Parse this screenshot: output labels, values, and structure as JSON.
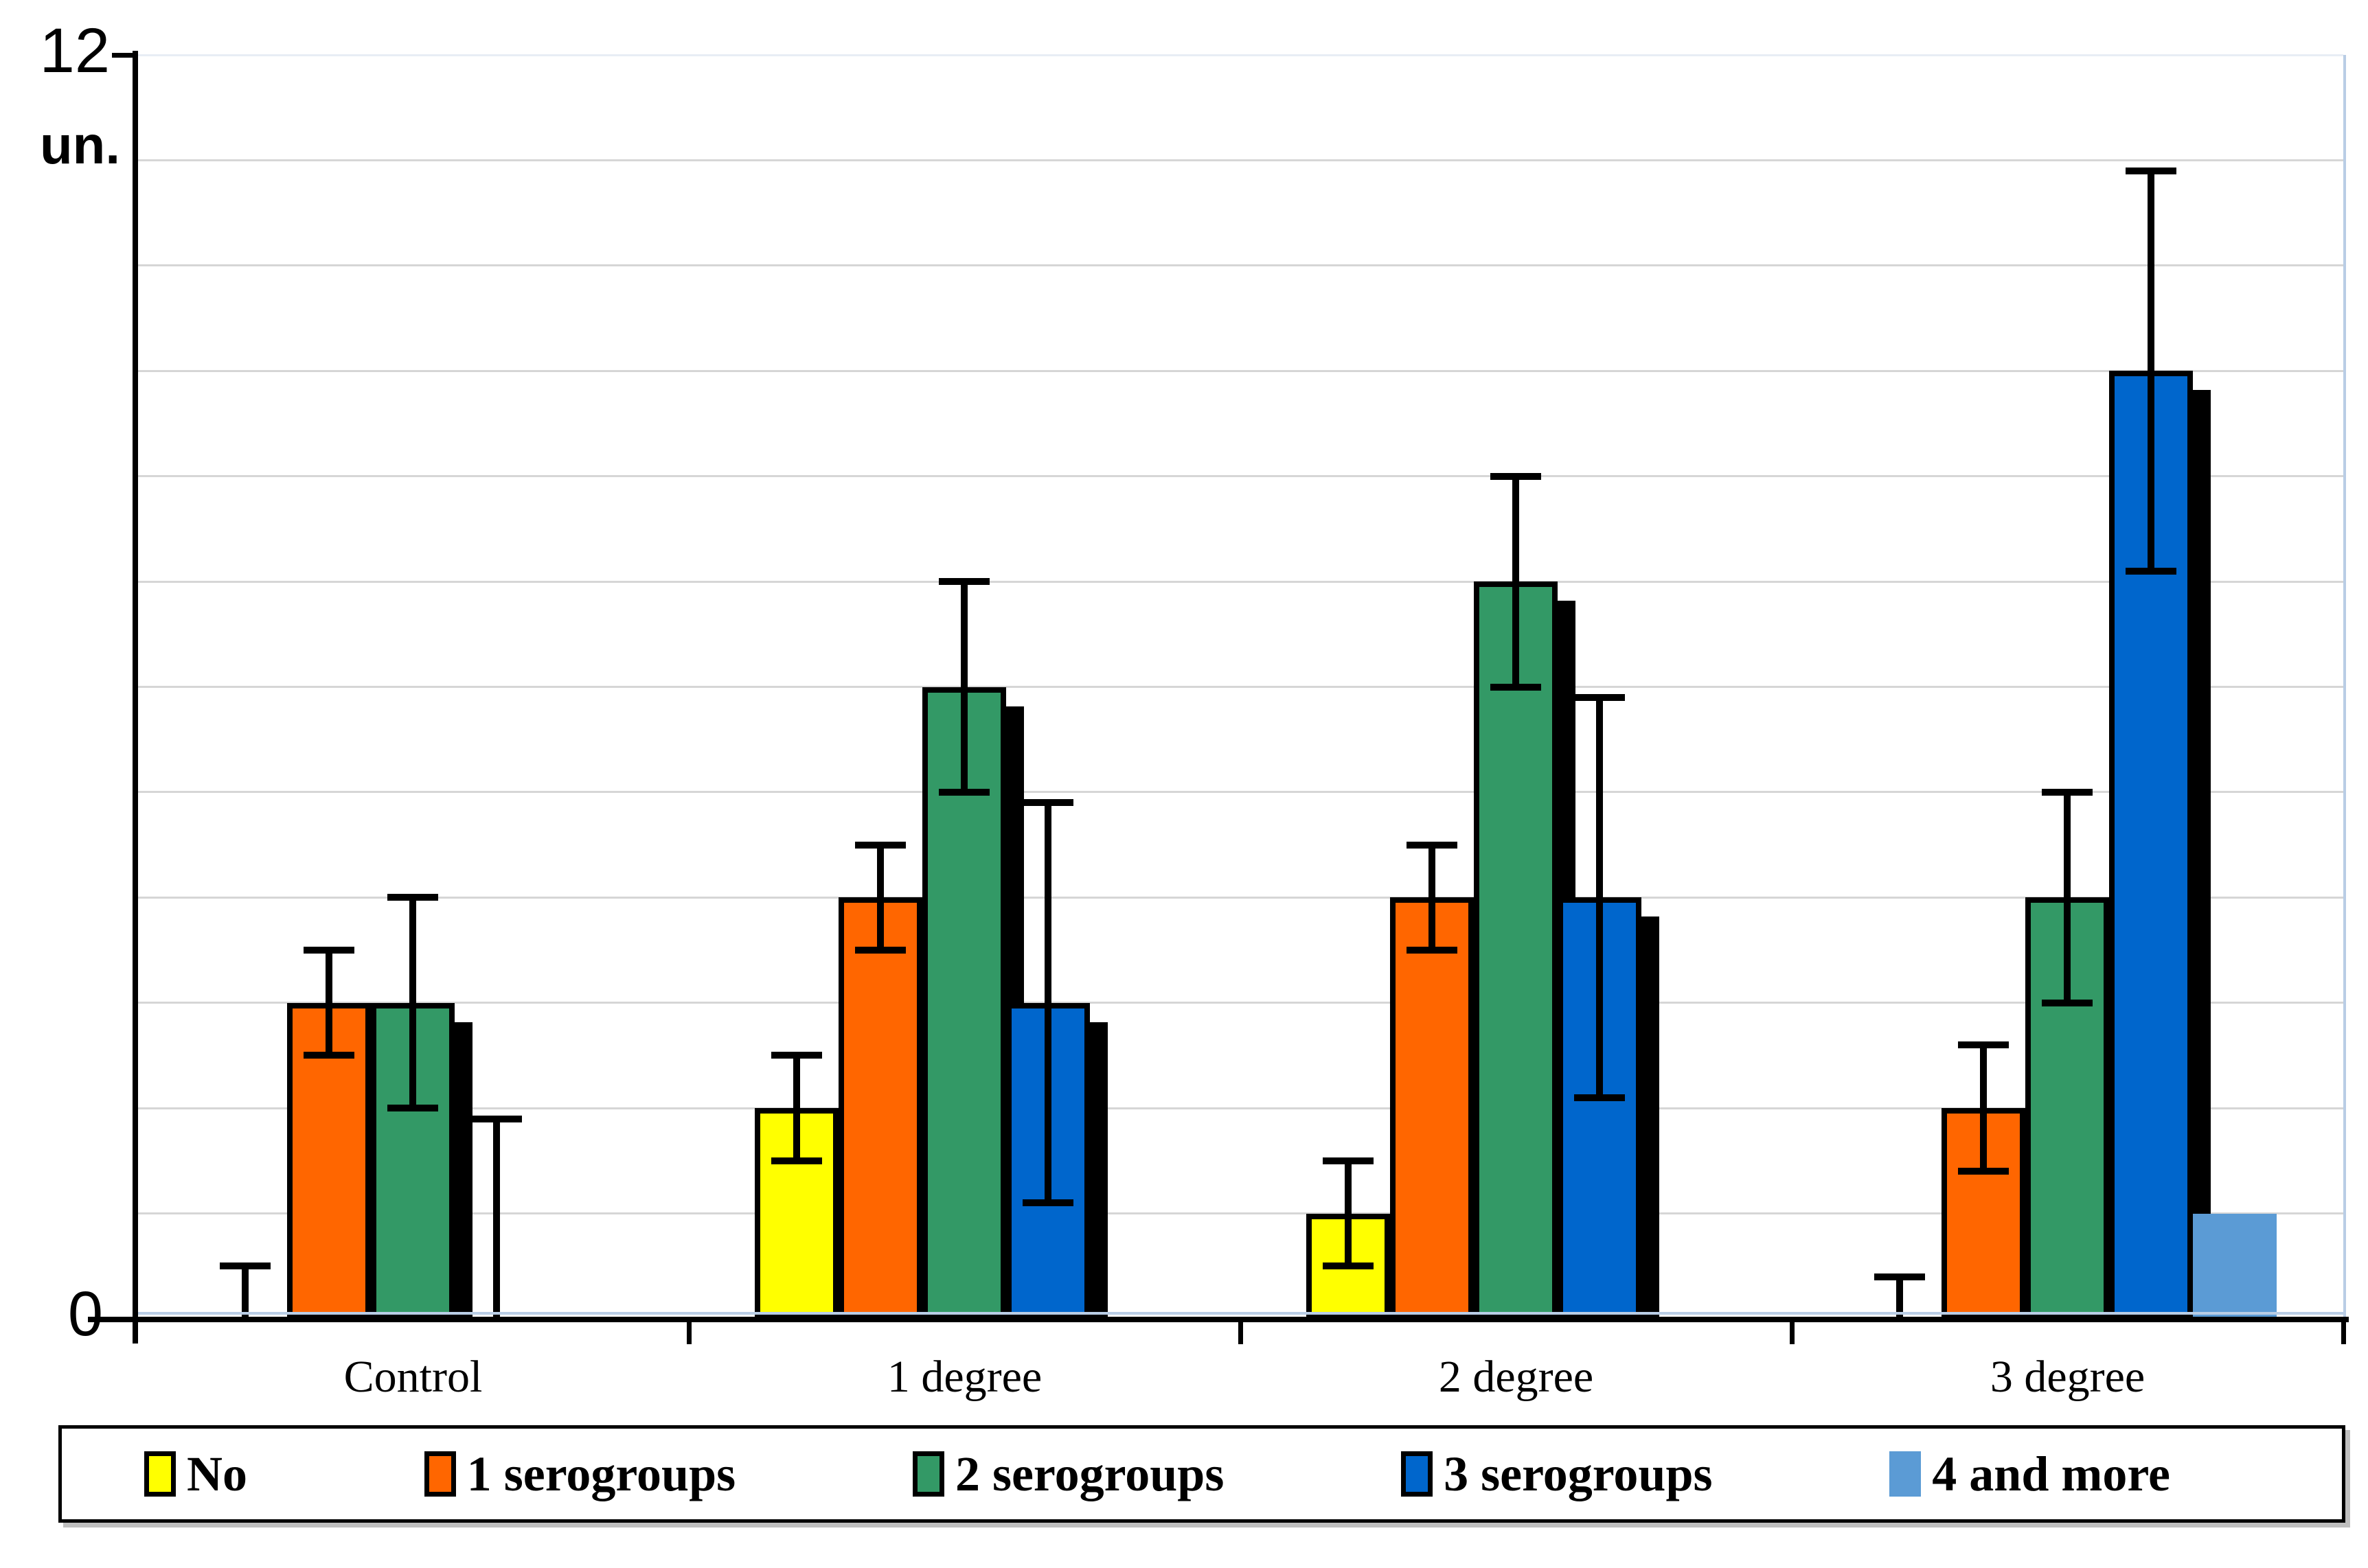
{
  "chart_data": {
    "type": "bar",
    "title": "",
    "ylabel": "un.",
    "y_axis": {
      "top_label": "12",
      "bottom_label": "0",
      "min": 0,
      "max": 12,
      "grid_step": 1
    },
    "grid": true,
    "legend_position": "bottom",
    "categories": [
      "Control",
      "1 degree",
      "2 degree",
      "3 degree"
    ],
    "series": [
      {
        "name": "No",
        "color": "#FFFF00",
        "outlined": true,
        "values": [
          0,
          2,
          1,
          0
        ],
        "errors": [
          0.5,
          0.5,
          0.5,
          0.4
        ]
      },
      {
        "name": "1 serogroups",
        "color": "#FF6600",
        "outlined": true,
        "values": [
          3,
          4,
          4,
          2
        ],
        "errors": [
          0.5,
          0.5,
          0.5,
          0.6
        ]
      },
      {
        "name": "2 serogroups",
        "color": "#339966",
        "outlined": true,
        "values": [
          3,
          6,
          7,
          4
        ],
        "errors": [
          1,
          1,
          1,
          1
        ]
      },
      {
        "name": "3 serogroups",
        "color": "#0066CC",
        "outlined": true,
        "values": [
          0,
          3,
          4,
          9
        ],
        "errors": [
          1.9,
          1.9,
          1.9,
          1.9
        ]
      },
      {
        "name": "4 and more",
        "color": "#5B9BD5",
        "outlined": false,
        "values": [
          0,
          0,
          0,
          1
        ],
        "errors": [
          0,
          0,
          0,
          0
        ]
      }
    ],
    "colors": {
      "gridline": "#d6d6d6",
      "plot_border": "#b9cde5",
      "axis": "#000000",
      "background": "#ffffff"
    }
  }
}
